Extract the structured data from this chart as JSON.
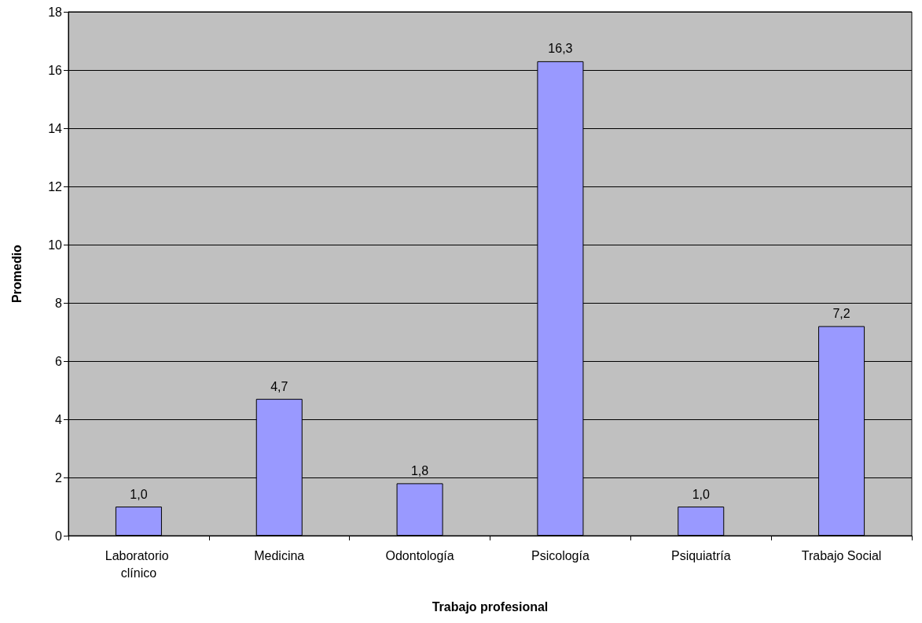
{
  "chart_data": {
    "type": "bar",
    "xlabel": "Trabajo profesional",
    "ylabel": "Promedio",
    "categories": [
      "Laboratorio clínico",
      "Medicina",
      "Odontología",
      "Psicología",
      "Psiquiatría",
      "Trabajo Social"
    ],
    "values": [
      1.0,
      4.7,
      1.8,
      16.3,
      1.0,
      7.2
    ],
    "value_labels": [
      "1,0",
      "4,7",
      "1,8",
      "16,3",
      "1,0",
      "7,2"
    ],
    "color": "#9999ff",
    "ylim": [
      0,
      18
    ],
    "yticks": [
      0,
      2,
      4,
      6,
      8,
      10,
      12,
      14,
      16,
      18
    ],
    "grid": "y"
  }
}
